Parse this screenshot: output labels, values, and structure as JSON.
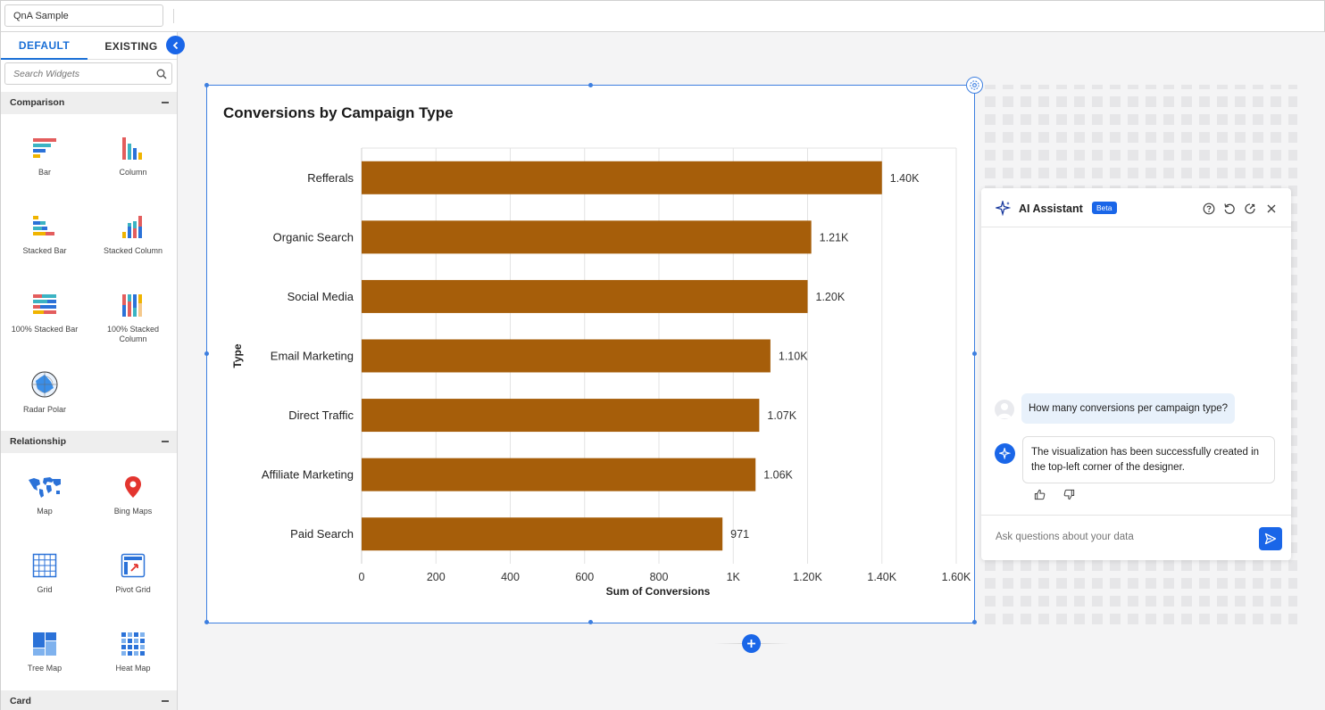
{
  "header": {
    "dashboard_name": "QnA Sample"
  },
  "sidebar": {
    "tabs": [
      {
        "label": "DEFAULT"
      },
      {
        "label": "EXISTING"
      }
    ],
    "search_placeholder": "Search Widgets",
    "sections": [
      {
        "title": "Comparison",
        "items": [
          "Bar",
          "Column",
          "Stacked Bar",
          "Stacked Column",
          "100% Stacked Bar",
          "100% Stacked Column",
          "Radar Polar"
        ]
      },
      {
        "title": "Relationship",
        "items": [
          "Map",
          "Bing Maps",
          "Grid",
          "Pivot Grid",
          "Tree Map",
          "Heat Map"
        ]
      },
      {
        "title": "Card",
        "items": []
      }
    ]
  },
  "chart_data": {
    "type": "bar",
    "orientation": "horizontal",
    "title": "Conversions by Campaign Type",
    "xlabel": "Sum of Conversions",
    "ylabel": "Type",
    "categories": [
      "Refferals",
      "Organic Search",
      "Social Media",
      "Email Marketing",
      "Direct Traffic",
      "Affiliate Marketing",
      "Paid Search"
    ],
    "values": [
      1400,
      1210,
      1200,
      1100,
      1070,
      1060,
      971
    ],
    "data_labels": [
      "1.40K",
      "1.21K",
      "1.20K",
      "1.10K",
      "1.07K",
      "1.06K",
      "971"
    ],
    "xlim": [
      0,
      1600
    ],
    "x_ticks": [
      0,
      200,
      400,
      600,
      800,
      1000,
      1200,
      1400,
      1600
    ],
    "x_tick_labels": [
      "0",
      "200",
      "400",
      "600",
      "800",
      "1K",
      "1.20K",
      "1.40K",
      "1.60K"
    ],
    "grid": true,
    "bar_color": "#a65e0a"
  },
  "ai_assistant": {
    "title": "AI Assistant",
    "badge": "Beta",
    "user_message": "How many conversions per campaign type?",
    "bot_message": "The visualization has been successfully created in the top-left corner of the designer.",
    "input_placeholder": "Ask questions about your data"
  },
  "colors": {
    "accent": "#1a66e8",
    "selection": "#3d7fe0"
  }
}
